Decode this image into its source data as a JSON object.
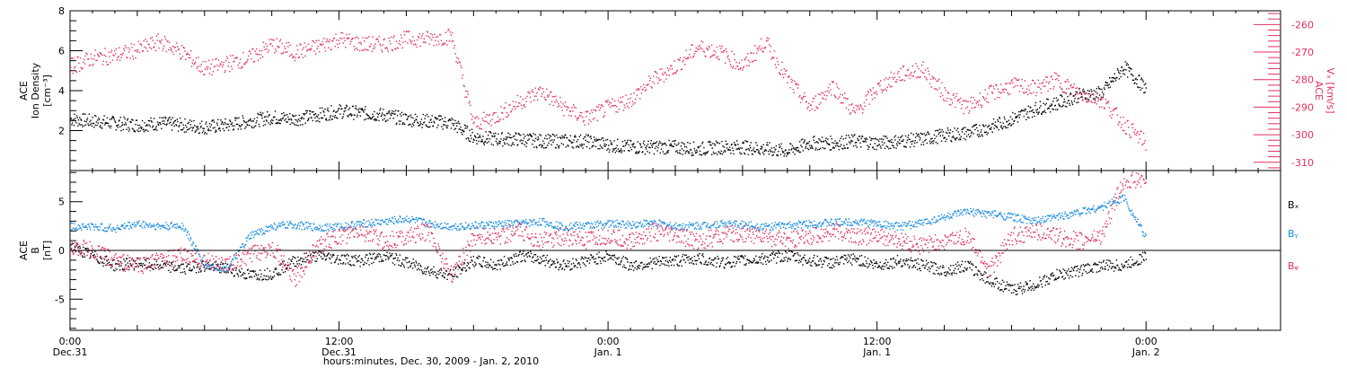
{
  "chart_data": [
    {
      "type": "scatter",
      "panel": "top",
      "ylabel": [
        "ACE",
        "Ion Density",
        "[cm⁻³]"
      ],
      "ylim": [
        0,
        8
      ],
      "yticks": [
        2,
        4,
        6,
        8
      ],
      "y2label": [
        "ACE",
        "Vₓ [km/s]"
      ],
      "y2lim": [
        -313,
        -255
      ],
      "y2ticks": [
        -260,
        -270,
        -280,
        -290,
        -300,
        -310
      ],
      "series": [
        {
          "color": "#000000",
          "axis": "left",
          "x": [
            0,
            1,
            2,
            3,
            4,
            5,
            6,
            7,
            8,
            9,
            10,
            11,
            12,
            13,
            14,
            15,
            16,
            17,
            18,
            19,
            20,
            21,
            22,
            23,
            24,
            25,
            26,
            27,
            28,
            29,
            30,
            31,
            32,
            33,
            34,
            35,
            36,
            37,
            38,
            39,
            40,
            41,
            42,
            43,
            44,
            45,
            46,
            47,
            48
          ],
          "y": [
            2.6,
            2.5,
            2.4,
            2.3,
            2.4,
            2.3,
            2.2,
            2.3,
            2.5,
            2.7,
            2.6,
            2.8,
            3.0,
            2.9,
            2.8,
            2.6,
            2.5,
            2.4,
            1.7,
            1.6,
            1.6,
            1.5,
            1.5,
            1.5,
            1.3,
            1.2,
            1.2,
            1.2,
            1.1,
            1.2,
            1.2,
            1.1,
            1.0,
            1.4,
            1.4,
            1.5,
            1.4,
            1.5,
            1.6,
            1.8,
            1.9,
            2.2,
            2.6,
            3.1,
            3.4,
            3.8,
            3.9,
            5.2,
            4.1
          ]
        },
        {
          "color": "#e0305c",
          "axis": "right",
          "x": [
            0,
            1,
            2,
            3,
            4,
            5,
            6,
            7,
            8,
            9,
            10,
            11,
            12,
            13,
            14,
            15,
            16,
            17,
            18,
            19,
            20,
            21,
            22,
            23,
            24,
            25,
            26,
            27,
            28,
            29,
            30,
            31,
            32,
            33,
            34,
            35,
            36,
            37,
            38,
            39,
            40,
            41,
            42,
            43,
            44,
            45,
            46,
            47,
            48
          ],
          "y": [
            -275,
            -272,
            -271,
            -269,
            -266,
            -270,
            -276,
            -274,
            -272,
            -267,
            -270,
            -268,
            -265,
            -267,
            -267,
            -265,
            -265,
            -264,
            -296,
            -293,
            -288,
            -284,
            -290,
            -294,
            -290,
            -287,
            -280,
            -275,
            -268,
            -270,
            -275,
            -266,
            -280,
            -290,
            -282,
            -292,
            -283,
            -278,
            -276,
            -285,
            -290,
            -285,
            -282,
            -283,
            -280,
            -285,
            -287,
            -296,
            -303
          ]
        }
      ]
    },
    {
      "type": "scatter",
      "panel": "bottom",
      "ylabel": [
        "ACE",
        "B",
        "[nT]"
      ],
      "ylim": [
        -8.2,
        8.2
      ],
      "yticks": [
        -5,
        0,
        5
      ],
      "zero_line": true,
      "legend": [
        "Bₓ",
        "Bᵧ",
        "Bᵩ"
      ],
      "legend_placement": "right",
      "series": [
        {
          "name": "Bₓ",
          "color": "#000000",
          "x": [
            0,
            1,
            2,
            3,
            4,
            5,
            6,
            7,
            8,
            9,
            10,
            11,
            12,
            13,
            14,
            15,
            16,
            17,
            18,
            19,
            20,
            21,
            22,
            23,
            24,
            25,
            26,
            27,
            28,
            29,
            30,
            31,
            32,
            33,
            34,
            35,
            36,
            37,
            38,
            39,
            40,
            41,
            42,
            43,
            44,
            45,
            46,
            47,
            48
          ],
          "y": [
            0.5,
            -0.5,
            -1.5,
            -1.2,
            -1.5,
            -1.8,
            -1.5,
            -1.8,
            -2.5,
            -2.3,
            -1.0,
            -0.5,
            -0.8,
            -1.0,
            -0.5,
            -1.2,
            -2.0,
            -2.5,
            -1.0,
            -1.5,
            -0.5,
            -0.8,
            -1.5,
            -1.0,
            -0.5,
            -1.5,
            -1.2,
            -1.0,
            -0.8,
            -1.2,
            -1.0,
            -0.8,
            -0.5,
            -1.0,
            -1.2,
            -0.8,
            -1.5,
            -1.0,
            -1.5,
            -2.0,
            -1.5,
            -3.0,
            -4.0,
            -3.5,
            -2.5,
            -2.0,
            -1.5,
            -1.5,
            -0.5
          ]
        },
        {
          "name": "Bᵧ",
          "color": "#1a8cde",
          "x": [
            0,
            1,
            2,
            3,
            4,
            5,
            6,
            7,
            8,
            9,
            10,
            11,
            12,
            13,
            14,
            15,
            16,
            17,
            18,
            19,
            20,
            21,
            22,
            23,
            24,
            25,
            26,
            27,
            28,
            29,
            30,
            31,
            32,
            33,
            34,
            35,
            36,
            37,
            38,
            39,
            40,
            41,
            42,
            43,
            44,
            45,
            46,
            47,
            48
          ],
          "y": [
            2.5,
            2.5,
            2.3,
            2.8,
            2.5,
            2.6,
            -1.5,
            -1.8,
            1.5,
            2.5,
            2.7,
            2.4,
            2.5,
            2.8,
            3.0,
            3.3,
            2.8,
            2.5,
            2.6,
            2.7,
            2.8,
            3.0,
            2.5,
            2.6,
            2.8,
            2.7,
            2.9,
            2.5,
            2.6,
            2.8,
            2.7,
            2.5,
            2.6,
            2.8,
            2.9,
            3.0,
            2.8,
            2.5,
            2.9,
            3.5,
            4.0,
            3.8,
            3.5,
            3.0,
            3.5,
            4.0,
            4.5,
            5.5,
            1.2
          ]
        },
        {
          "name": "Bᵩ",
          "color": "#e0305c",
          "x": [
            0,
            1,
            2,
            3,
            4,
            5,
            6,
            7,
            8,
            9,
            10,
            11,
            12,
            13,
            14,
            15,
            16,
            17,
            18,
            19,
            20,
            21,
            22,
            23,
            24,
            25,
            26,
            27,
            28,
            29,
            30,
            31,
            32,
            33,
            34,
            35,
            36,
            37,
            38,
            39,
            40,
            41,
            42,
            43,
            44,
            45,
            46,
            47,
            48
          ],
          "y": [
            0.5,
            0.0,
            -1.0,
            -1.5,
            -1.0,
            -0.5,
            -1.0,
            -1.5,
            -0.5,
            0.5,
            -3.0,
            0.5,
            1.5,
            2.0,
            1.0,
            1.5,
            2.0,
            -2.5,
            1.5,
            1.5,
            2.0,
            1.0,
            1.5,
            1.0,
            1.5,
            1.0,
            2.0,
            1.5,
            1.0,
            1.5,
            1.8,
            1.5,
            1.0,
            1.5,
            2.0,
            1.5,
            1.5,
            1.0,
            0.5,
            1.0,
            1.5,
            -2.0,
            1.5,
            2.0,
            1.5,
            1.0,
            1.5,
            7.4,
            7.2
          ]
        }
      ]
    }
  ],
  "xaxis": {
    "xlim": [
      0,
      54
    ],
    "tick_positions": [
      0,
      12,
      24,
      36,
      48
    ],
    "tick_labels": [
      [
        "0:00",
        "Dec.31"
      ],
      [
        "12:00",
        "Dec.31"
      ],
      [
        "0:00",
        "Jan. 1"
      ],
      [
        "12:00",
        "Jan. 1"
      ],
      [
        "0:00",
        "Jan. 2"
      ]
    ],
    "xlabel": "hours:minutes, Dec. 30, 2009 - Jan.  2, 2010"
  },
  "colors": {
    "black": "#000000",
    "pink": "#e0305c",
    "blue": "#1a8cde"
  }
}
